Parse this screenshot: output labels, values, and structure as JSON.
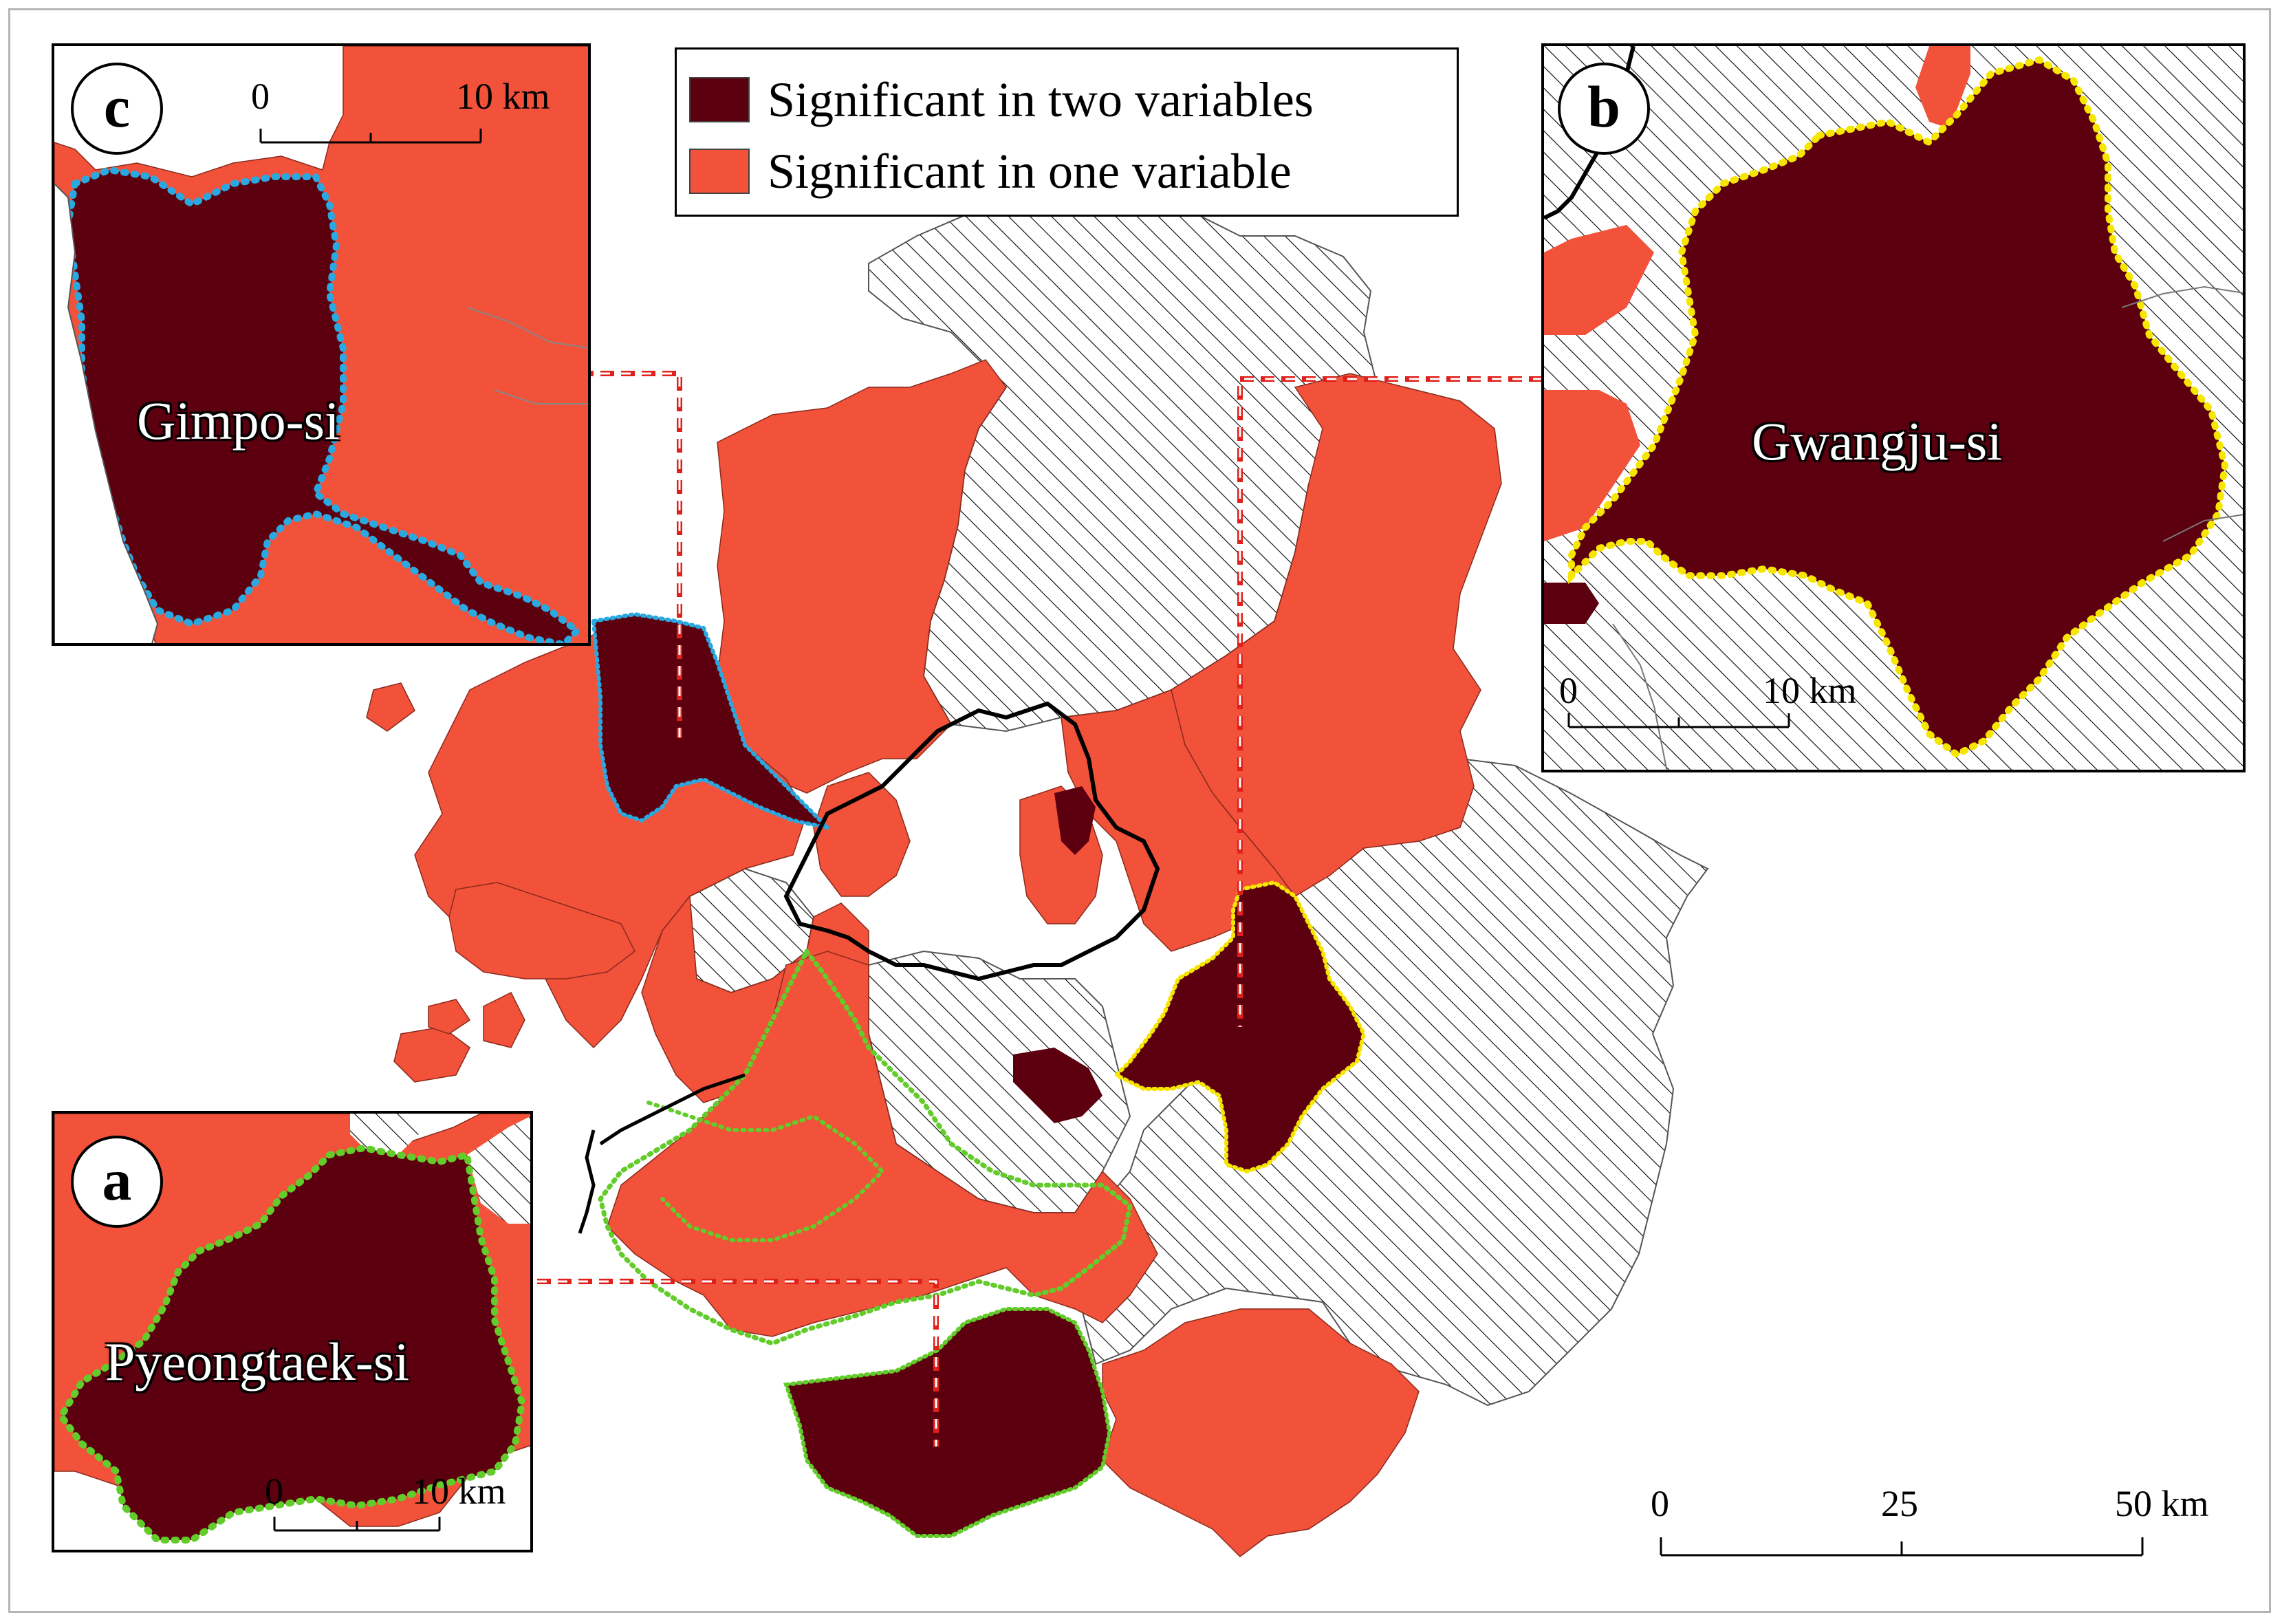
{
  "legend": {
    "items": [
      {
        "label": "Significant in two variables",
        "color": "#5c0010"
      },
      {
        "label": "Significant in one variable",
        "color": "#f2513a"
      }
    ]
  },
  "colors": {
    "two_variables": "#5c0010",
    "one_variable": "#f2513a",
    "not_significant_hatch": "#000000",
    "seoul_boundary": "#000000",
    "gimpo_outline": "#2aa8e0",
    "gwangju_outline": "#f7e600",
    "pyeongtaek_outline": "#62cc2a",
    "leader_line": "#e0201a"
  },
  "insets": {
    "a": {
      "badge": "a",
      "place": "Pyeongtaek-si",
      "scale": {
        "ticks": [
          "0",
          "10 km"
        ]
      }
    },
    "b": {
      "badge": "b",
      "place": "Gwangju-si",
      "scale": {
        "ticks": [
          "0",
          "10 km"
        ]
      }
    },
    "c": {
      "badge": "c",
      "place": "Gimpo-si",
      "scale": {
        "ticks": [
          "0",
          "10 km"
        ]
      }
    }
  },
  "main_scale": {
    "ticks": [
      "0",
      "25",
      "50 km"
    ]
  }
}
